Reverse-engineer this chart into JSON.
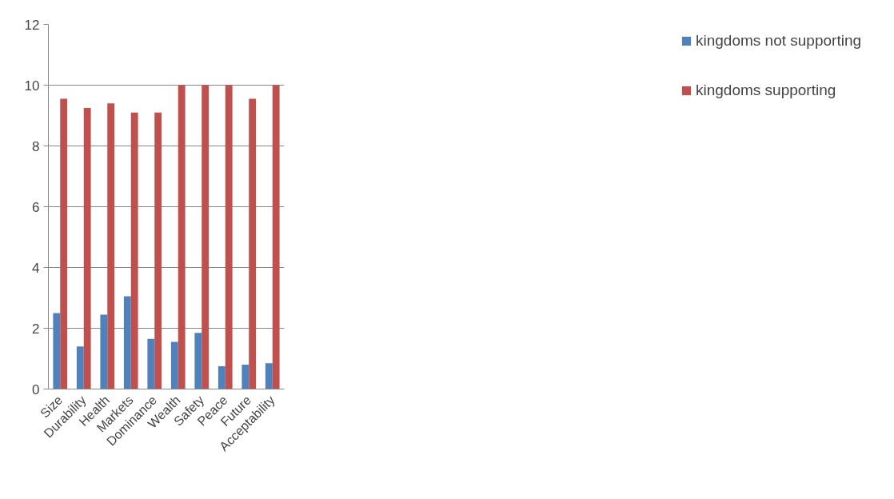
{
  "chart_data": {
    "type": "bar",
    "categories": [
      "Size",
      "Durability",
      "Health",
      "Markets",
      "Dominance",
      "Wealth",
      "Safety",
      "Peace",
      "Future",
      "Acceptability"
    ],
    "series": [
      {
        "name": "kingdoms not supporting",
        "color": "#4f81bd",
        "values": [
          2.5,
          1.4,
          2.45,
          3.05,
          1.65,
          1.55,
          1.85,
          0.75,
          0.8,
          0.85
        ]
      },
      {
        "name": "kingdoms supporting",
        "color": "#c0504d",
        "values": [
          9.55,
          9.25,
          9.4,
          9.1,
          9.1,
          10,
          10,
          10,
          9.55,
          10
        ]
      }
    ],
    "ylim": [
      0,
      12
    ],
    "yticks": [
      0,
      2,
      4,
      6,
      8,
      10,
      12
    ],
    "grid": "y",
    "legend": "right"
  }
}
